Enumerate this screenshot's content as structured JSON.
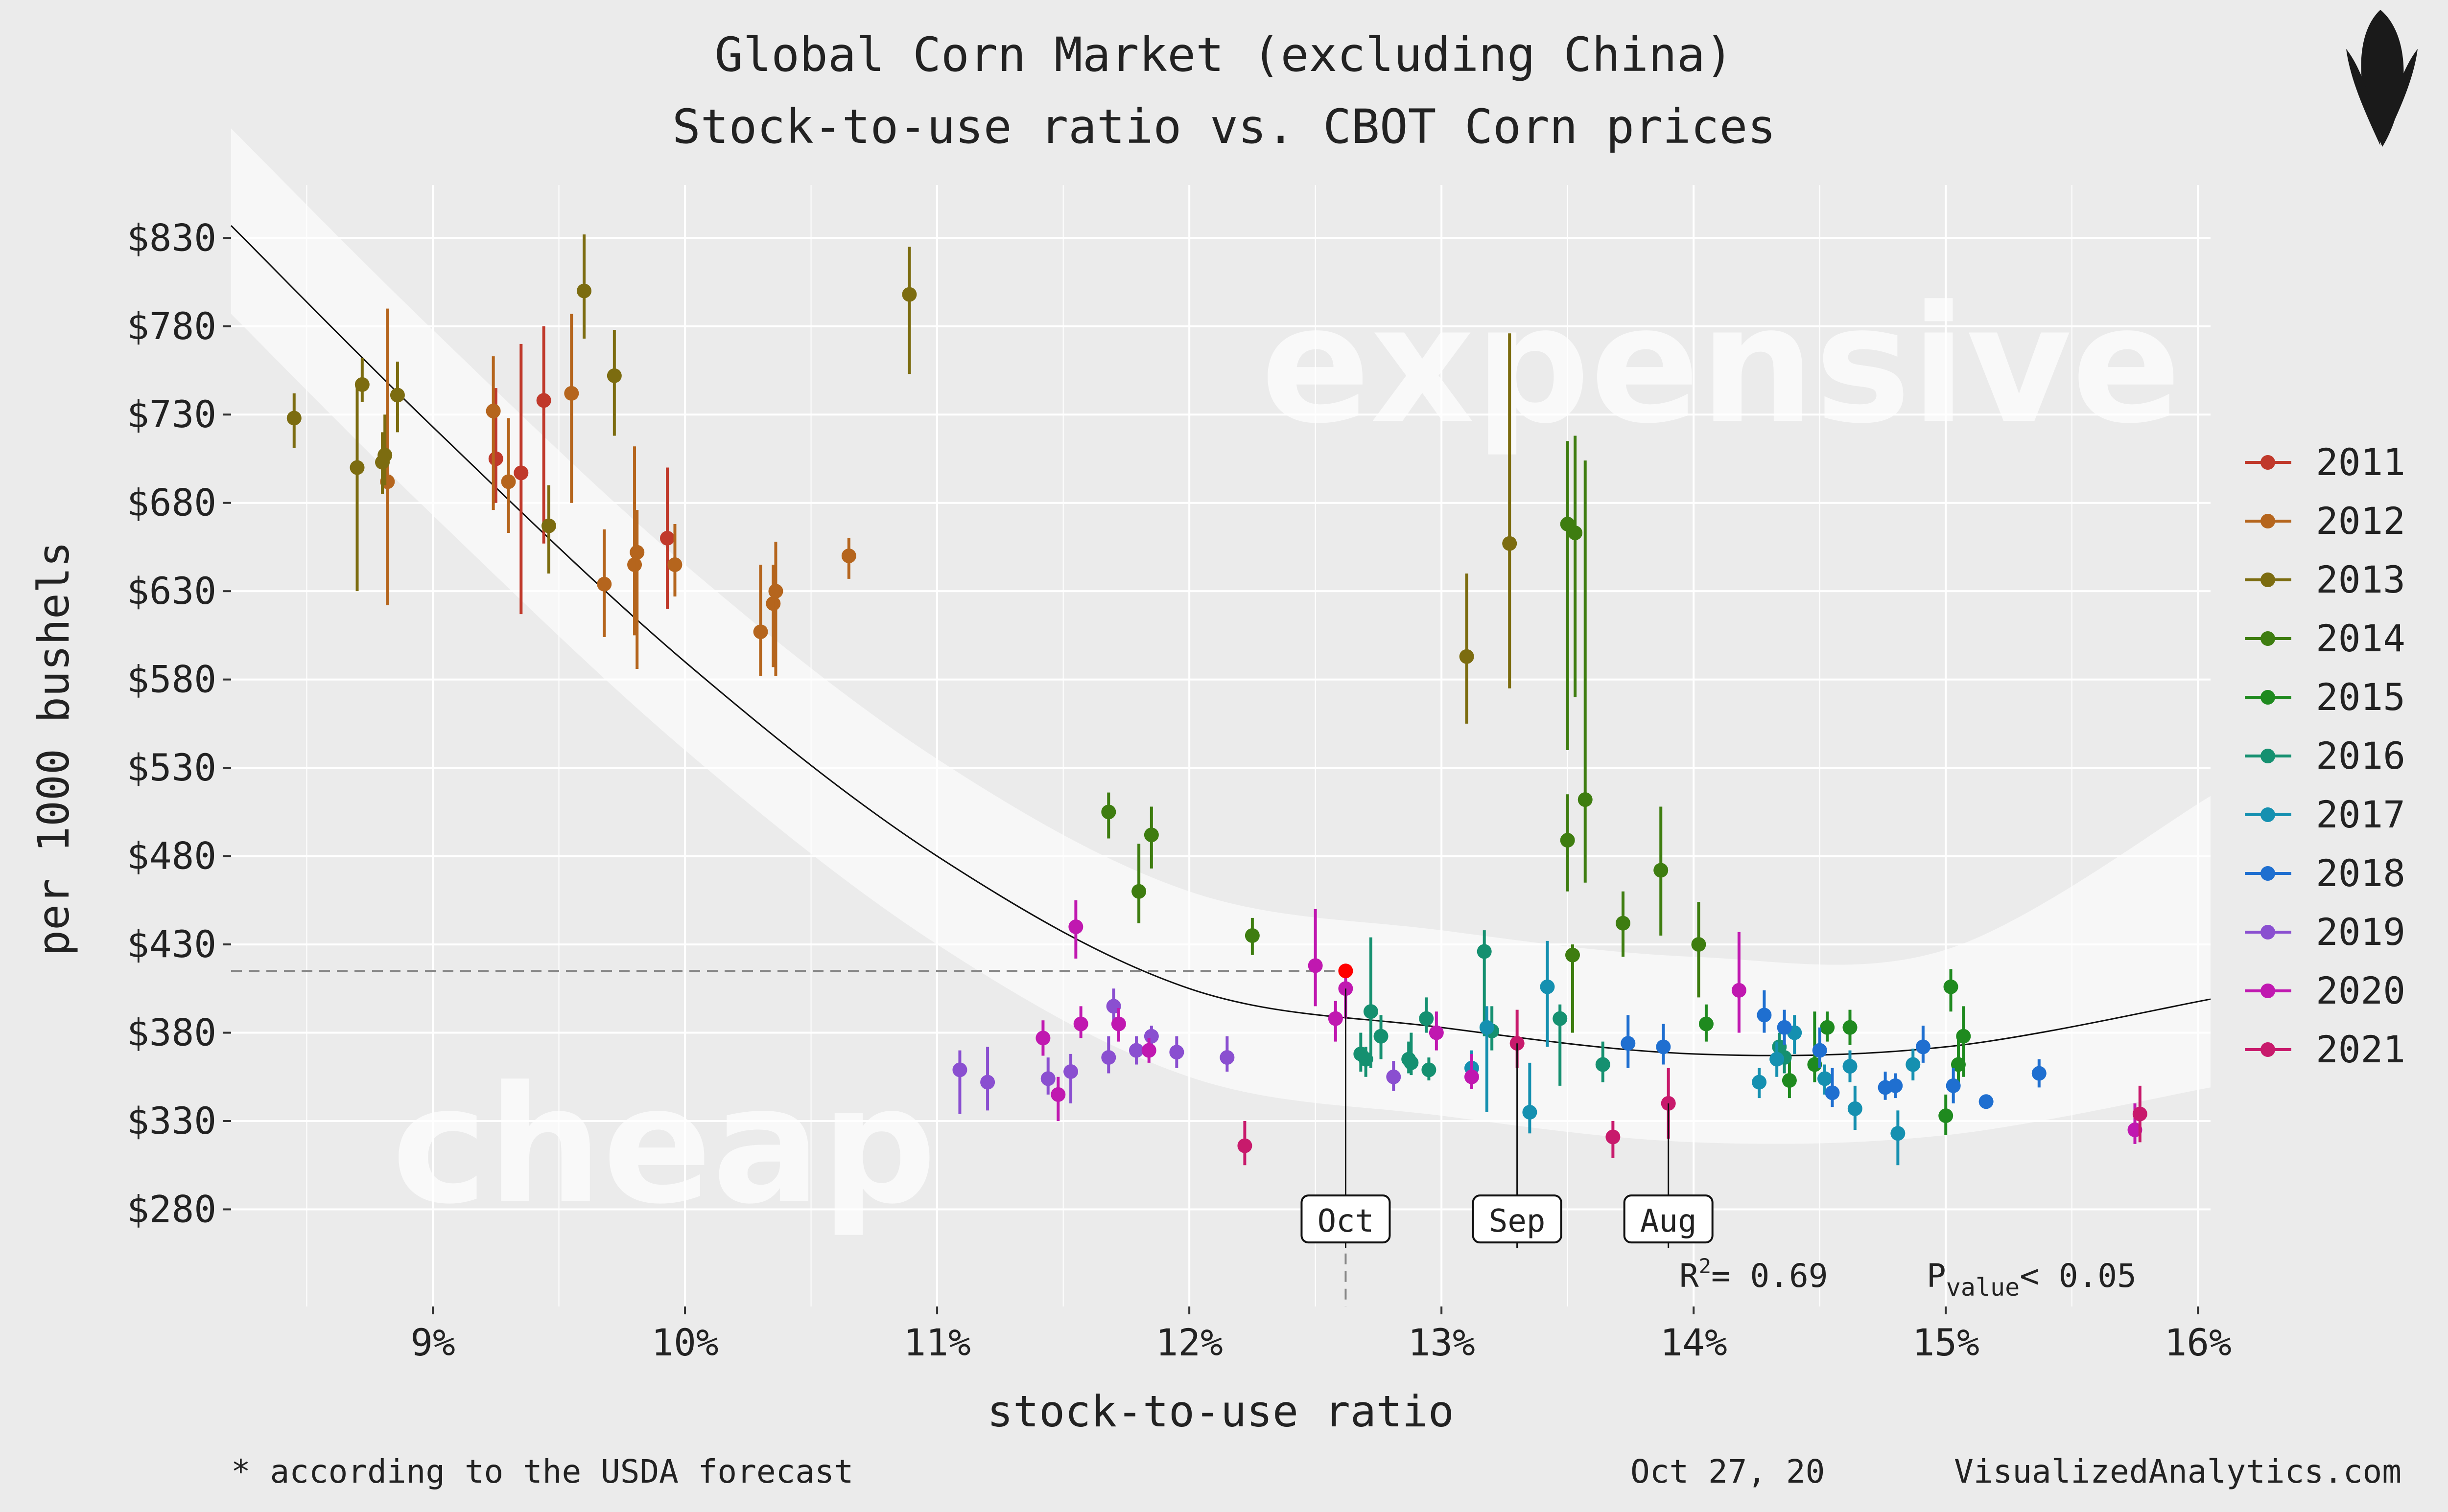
{
  "chart_data": {
    "type": "scatter",
    "title": "Global Corn Market (excluding China)",
    "subtitle": "Stock-to-use ratio vs. CBOT Corn prices",
    "xlabel": "stock-to-use ratio",
    "ylabel": "per 1000 bushels",
    "xlim": [
      8.2,
      16.05
    ],
    "ylim": [
      225,
      860
    ],
    "x_ticks": [
      9,
      10,
      11,
      12,
      13,
      14,
      15,
      16
    ],
    "x_tick_labels": [
      "9%",
      "10%",
      "11%",
      "12%",
      "13%",
      "14%",
      "15%",
      "16%"
    ],
    "y_ticks": [
      280,
      330,
      380,
      430,
      480,
      530,
      580,
      630,
      680,
      730,
      780,
      830
    ],
    "y_tick_labels": [
      "$280",
      "$330",
      "$380",
      "$430",
      "$480",
      "$530",
      "$580",
      "$630",
      "$680",
      "$730",
      "$780",
      "$830"
    ],
    "watermarks": {
      "expensive": "expensive",
      "cheap": "cheap"
    },
    "annotation_stats": {
      "r2_prefix": "R",
      "r2_sup": "2",
      "r2_value": "= 0.69",
      "p_prefix": "P",
      "p_sub": "value",
      "p_value": "< 0.05"
    },
    "trend": {
      "x": [
        8.2,
        9,
        10,
        11,
        12,
        13,
        14,
        15,
        16.05
      ],
      "y": [
        837,
        723,
        590,
        480,
        405,
        383,
        368,
        372,
        399
      ]
    },
    "current": {
      "x": 12.62,
      "y": 415
    },
    "month_callouts": [
      {
        "label": "Oct",
        "x": 12.62,
        "y": 405
      },
      {
        "label": "Sep",
        "x": 13.3,
        "y": 374
      },
      {
        "label": "Aug",
        "x": 13.9,
        "y": 340
      }
    ],
    "series": [
      {
        "name": "2011",
        "color": "#c0392b",
        "points": [
          [
            9.25,
            705,
            680,
            745
          ],
          [
            9.35,
            697,
            617,
            770
          ],
          [
            9.44,
            738,
            657,
            780
          ],
          [
            9.93,
            660,
            620,
            700
          ]
        ]
      },
      {
        "name": "2012",
        "color": "#b5651d",
        "points": [
          [
            8.82,
            692,
            622,
            790
          ],
          [
            9.24,
            732,
            676,
            763
          ],
          [
            9.3,
            692,
            663,
            728
          ],
          [
            9.55,
            742,
            680,
            787
          ],
          [
            9.68,
            634,
            604,
            665
          ],
          [
            9.8,
            645,
            605,
            712
          ],
          [
            9.81,
            652,
            586,
            676
          ],
          [
            9.96,
            645,
            627,
            668
          ],
          [
            10.3,
            607,
            582,
            645
          ],
          [
            10.35,
            623,
            587,
            645
          ],
          [
            10.36,
            630,
            582,
            658
          ],
          [
            10.65,
            650,
            637,
            660
          ]
        ]
      },
      {
        "name": "2013",
        "color": "#7c6c10",
        "points": [
          [
            8.45,
            728,
            711,
            742
          ],
          [
            8.7,
            700,
            630,
            745
          ],
          [
            8.72,
            747,
            737,
            762
          ],
          [
            8.8,
            703,
            685,
            720
          ],
          [
            8.81,
            707,
            690,
            730
          ],
          [
            8.86,
            741,
            720,
            760
          ],
          [
            9.46,
            667,
            640,
            690
          ],
          [
            9.6,
            800,
            773,
            832
          ],
          [
            9.72,
            752,
            718,
            778
          ],
          [
            10.89,
            798,
            753,
            825
          ],
          [
            13.1,
            593,
            555,
            640
          ],
          [
            13.27,
            657,
            575,
            776
          ]
        ]
      },
      {
        "name": "2014",
        "color": "#3e7d10",
        "points": [
          [
            11.68,
            505,
            490,
            516
          ],
          [
            11.8,
            460,
            442,
            487
          ],
          [
            11.85,
            492,
            473,
            508
          ],
          [
            12.25,
            435,
            424,
            445
          ],
          [
            13.5,
            668,
            540,
            715
          ],
          [
            13.5,
            489,
            460,
            515
          ],
          [
            13.53,
            663,
            570,
            718
          ],
          [
            13.52,
            424,
            380,
            430
          ],
          [
            13.57,
            512,
            465,
            704
          ],
          [
            13.72,
            442,
            423,
            460
          ],
          [
            13.87,
            472,
            435,
            508
          ],
          [
            14.02,
            430,
            400,
            454
          ]
        ]
      },
      {
        "name": "2015",
        "color": "#1f8a1f",
        "points": [
          [
            14.05,
            385,
            375,
            396
          ],
          [
            14.38,
            353,
            343,
            365
          ],
          [
            14.48,
            362,
            352,
            392
          ],
          [
            14.53,
            383,
            375,
            392
          ],
          [
            14.62,
            383,
            373,
            393
          ],
          [
            15.0,
            333,
            322,
            345
          ],
          [
            15.02,
            406,
            392,
            416
          ],
          [
            15.05,
            362,
            350,
            380
          ],
          [
            15.07,
            378,
            355,
            395
          ]
        ]
      },
      {
        "name": "2016",
        "color": "#159070",
        "points": [
          [
            12.68,
            368,
            358,
            380
          ],
          [
            12.7,
            365,
            355,
            372
          ],
          [
            12.72,
            392,
            360,
            434
          ],
          [
            12.76,
            378,
            365,
            390
          ],
          [
            12.87,
            365,
            357,
            375
          ],
          [
            12.88,
            363,
            356,
            380
          ],
          [
            12.94,
            388,
            380,
            400
          ],
          [
            12.95,
            359,
            353,
            366
          ],
          [
            13.17,
            426,
            378,
            438
          ],
          [
            13.2,
            381,
            370,
            395
          ],
          [
            13.47,
            388,
            350,
            396
          ],
          [
            13.64,
            362,
            352,
            375
          ],
          [
            14.34,
            372,
            362,
            380
          ],
          [
            14.36,
            366,
            357,
            374
          ]
        ]
      },
      {
        "name": "2017",
        "color": "#1590b0",
        "points": [
          [
            13.12,
            360,
            352,
            370
          ],
          [
            13.18,
            383,
            335,
            395
          ],
          [
            13.35,
            335,
            323,
            363
          ],
          [
            13.42,
            406,
            372,
            432
          ],
          [
            14.26,
            352,
            343,
            360
          ],
          [
            14.33,
            365,
            355,
            375
          ],
          [
            14.4,
            380,
            368,
            390
          ],
          [
            14.52,
            354,
            345,
            362
          ],
          [
            14.62,
            361,
            352,
            370
          ],
          [
            14.64,
            337,
            325,
            350
          ],
          [
            14.81,
            323,
            305,
            336
          ],
          [
            14.87,
            362,
            353,
            371
          ]
        ]
      },
      {
        "name": "2018",
        "color": "#1f6fd0",
        "points": [
          [
            13.74,
            374,
            360,
            390
          ],
          [
            13.88,
            372,
            362,
            385
          ],
          [
            14.28,
            390,
            380,
            404
          ],
          [
            14.36,
            383,
            373,
            393
          ],
          [
            14.5,
            370,
            360,
            383
          ],
          [
            14.55,
            346,
            338,
            360
          ],
          [
            14.76,
            349,
            342,
            358
          ],
          [
            14.8,
            350,
            343,
            357
          ],
          [
            14.91,
            372,
            363,
            384
          ],
          [
            15.03,
            350,
            340,
            360
          ],
          [
            15.16,
            341,
            337,
            345
          ],
          [
            15.37,
            357,
            349,
            365
          ]
        ]
      },
      {
        "name": "2019",
        "color": "#8a4fd0",
        "points": [
          [
            11.09,
            359,
            334,
            370
          ],
          [
            11.2,
            352,
            336,
            372
          ],
          [
            11.44,
            354,
            345,
            366
          ],
          [
            11.53,
            358,
            340,
            368
          ],
          [
            11.68,
            366,
            357,
            378
          ],
          [
            11.7,
            395,
            384,
            405
          ],
          [
            11.79,
            370,
            362,
            378
          ],
          [
            11.85,
            378,
            370,
            384
          ],
          [
            11.95,
            369,
            360,
            378
          ],
          [
            12.15,
            366,
            358,
            378
          ],
          [
            12.81,
            355,
            347,
            364
          ]
        ]
      },
      {
        "name": "2020",
        "color": "#c018b0",
        "points": [
          [
            11.42,
            377,
            367,
            387
          ],
          [
            11.48,
            345,
            330,
            355
          ],
          [
            11.55,
            440,
            422,
            455
          ],
          [
            11.57,
            385,
            377,
            395
          ],
          [
            11.72,
            385,
            375,
            394
          ],
          [
            11.84,
            370,
            363,
            377
          ],
          [
            12.5,
            418,
            395,
            450
          ],
          [
            12.58,
            388,
            375,
            398
          ],
          [
            12.62,
            405,
            388,
            415
          ],
          [
            12.98,
            380,
            370,
            392
          ],
          [
            13.12,
            355,
            348,
            368
          ],
          [
            14.18,
            404,
            380,
            437
          ],
          [
            15.75,
            325,
            317,
            340
          ]
        ]
      },
      {
        "name": "2021",
        "color": "#c81a6c",
        "points": [
          [
            12.22,
            316,
            305,
            330
          ],
          [
            13.3,
            374,
            360,
            393
          ],
          [
            13.68,
            321,
            309,
            330
          ],
          [
            13.9,
            340,
            320,
            360
          ],
          [
            15.77,
            334,
            318,
            350
          ]
        ]
      }
    ]
  },
  "logo": "corn-logo",
  "footnote": "* according to the USDA forecast",
  "date": "Oct 27, 20",
  "site": "VisualizedAnalytics.com"
}
